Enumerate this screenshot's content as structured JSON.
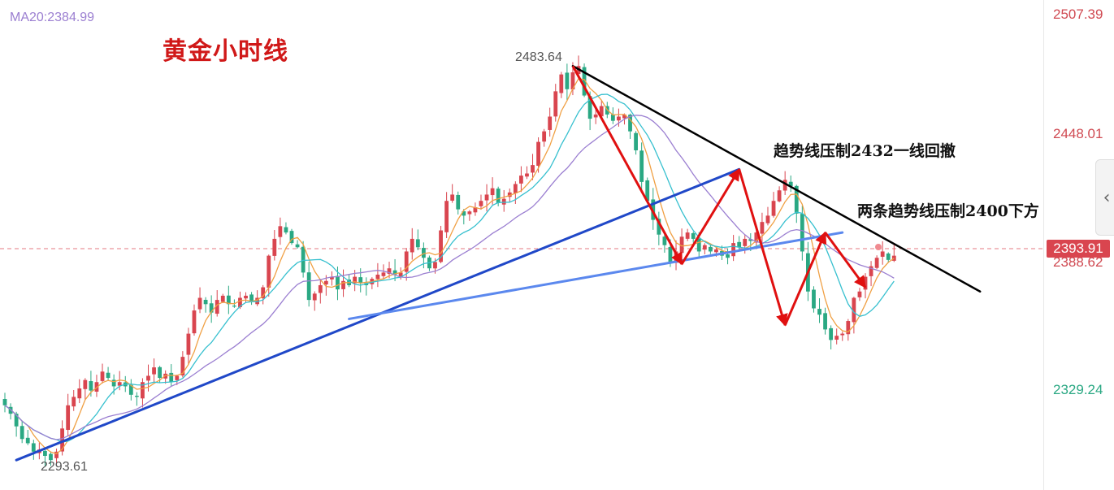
{
  "legend": {
    "ma20_label": "MA20:2384.99"
  },
  "title": "黄金小时线",
  "annotations": {
    "line1": "趋势线压制2432一线回撤",
    "line2": "两条趋势线压制2400下方"
  },
  "price_labels": {
    "high": "2483.64",
    "low": "2293.61"
  },
  "axis": {
    "ticks": [
      {
        "label": "2507.39",
        "dir": "up"
      },
      {
        "label": "2448.01",
        "dir": "up"
      },
      {
        "label": "2388.62",
        "dir": "up"
      },
      {
        "label": "2329.24",
        "dir": "dn"
      }
    ],
    "current_price": "2393.91"
  },
  "controls": {
    "collapse_icon": "‹"
  },
  "colors": {
    "up": "#d9454f",
    "down": "#2aa883",
    "ma5": "#f0a044",
    "ma10": "#37c0cf",
    "ma20": "#9b7fd1",
    "trend_dark_blue": "#2048c8",
    "trend_light_blue": "#5b88ee",
    "resistance": "#000000",
    "arrows": "#e01010"
  },
  "chart_data": {
    "type": "candlestick",
    "title": "黄金小时线",
    "y_range": [
      2280,
      2510
    ],
    "ticks": [
      2507.39,
      2448.01,
      2388.62,
      2329.24
    ],
    "current_price": 2393.91,
    "indicators": {
      "MA20": 2384.99
    },
    "extremes": {
      "high": 2483.64,
      "low": 2293.61
    },
    "ohlc_close": [
      2322,
      2318,
      2312,
      2306,
      2304,
      2300,
      2301,
      2298,
      2296,
      2300,
      2311,
      2322,
      2326,
      2330,
      2334,
      2329,
      2333,
      2338,
      2335,
      2331,
      2333,
      2331,
      2327,
      2326,
      2333,
      2336,
      2340,
      2335,
      2337,
      2333,
      2336,
      2345,
      2356,
      2367,
      2373,
      2370,
      2366,
      2372,
      2374,
      2370,
      2369,
      2373,
      2374,
      2371,
      2373,
      2378,
      2393,
      2401,
      2407,
      2404,
      2399,
      2397,
      2385,
      2372,
      2375,
      2379,
      2381,
      2383,
      2377,
      2381,
      2379,
      2383,
      2380,
      2379,
      2382,
      2384,
      2385,
      2387,
      2384,
      2385,
      2395,
      2401,
      2397,
      2392,
      2387,
      2390,
      2405,
      2419,
      2422,
      2415,
      2412,
      2414,
      2416,
      2419,
      2422,
      2425,
      2418,
      2420,
      2423,
      2427,
      2431,
      2432,
      2436,
      2447,
      2452,
      2459,
      2471,
      2479,
      2472,
      2480,
      2483,
      2469,
      2458,
      2460,
      2464,
      2460,
      2457,
      2459,
      2460,
      2452,
      2443,
      2428,
      2419,
      2410,
      2403,
      2398,
      2390,
      2395,
      2402,
      2404,
      2401,
      2395,
      2398,
      2395,
      2396,
      2393,
      2392,
      2399,
      2397,
      2401,
      2400,
      2404,
      2409,
      2412,
      2419,
      2424,
      2429,
      2426,
      2413,
      2395,
      2376,
      2368,
      2365,
      2358,
      2353,
      2355,
      2356,
      2362,
      2373,
      2376,
      2383,
      2388,
      2392,
      2395,
      2391,
      2393
    ],
    "trendlines": [
      {
        "name": "support-dark",
        "from": {
          "bar": 2,
          "price": 2296
        },
        "to": {
          "bar": 128,
          "price": 2434
        }
      },
      {
        "name": "support-light",
        "from": {
          "bar": 60,
          "price": 2363
        },
        "to": {
          "bar": 146,
          "price": 2404
        }
      },
      {
        "name": "resistance",
        "from": {
          "bar": 99,
          "price": 2483
        },
        "to": {
          "bar": 170,
          "price": 2376
        }
      }
    ],
    "zigzag": [
      {
        "bar": 99,
        "price": 2483
      },
      {
        "bar": 118,
        "price": 2389
      },
      {
        "bar": 128,
        "price": 2434
      },
      {
        "bar": 136,
        "price": 2360
      },
      {
        "bar": 143,
        "price": 2404
      },
      {
        "bar": 150,
        "price": 2378
      }
    ]
  }
}
